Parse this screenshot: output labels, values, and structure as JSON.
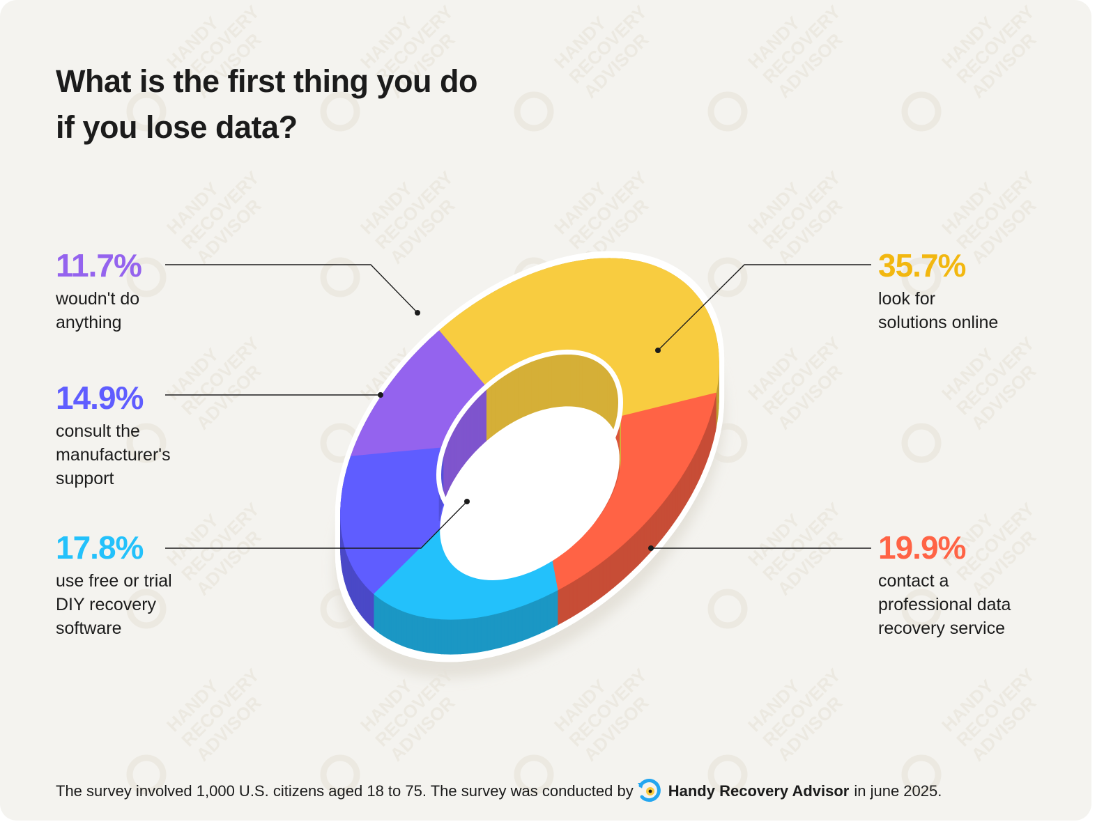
{
  "title": "What is the first thing you do if you lose data?",
  "colors": {
    "background": "#f4f3ef",
    "purple": "#9463ee",
    "indigo": "#5f5dff",
    "cyan": "#23c1fb",
    "coral": "#ff6345",
    "yellow": "#f8cc40"
  },
  "chart_data": {
    "type": "pie",
    "style": "3D donut",
    "title": "What is the first thing you do if you lose data?",
    "slices": [
      {
        "label": "look for solutions online",
        "value": 35.7,
        "value_label": "35.7%",
        "color": "#f8cc40"
      },
      {
        "label": "contact a professional data recovery service",
        "value": 19.9,
        "value_label": "19.9%",
        "color": "#ff6345"
      },
      {
        "label": "use free or trial DIY recovery software",
        "value": 17.8,
        "value_label": "17.8%",
        "color": "#23c1fb"
      },
      {
        "label": "consult the manufacturer's support",
        "value": 14.9,
        "value_label": "14.9%",
        "color": "#5f5dff"
      },
      {
        "label": "woudn't do anything",
        "value": 11.7,
        "value_label": "11.7%",
        "color": "#9463ee"
      }
    ]
  },
  "labels": {
    "purple": {
      "pct": "11.7%",
      "line1": "woudn't do",
      "line2": "anything"
    },
    "indigo": {
      "pct": "14.9%",
      "line1": "consult the",
      "line2": "manufacturer's",
      "line3": "support"
    },
    "cyan": {
      "pct": "17.8%",
      "line1": "use free or trial",
      "line2": "DIY recovery",
      "line3": "software"
    },
    "yellow": {
      "pct": "35.7%",
      "line1": "look for",
      "line2": "solutions online"
    },
    "coral": {
      "pct": "19.9%",
      "line1": "contact a",
      "line2": "professional data",
      "line3": "recovery service"
    }
  },
  "footer": {
    "text_before": "The survey involved 1,000 U.S. citizens aged 18 to 75. The survey was conducted by",
    "brand": "Handy Recovery Advisor",
    "text_after": "in june 2025.",
    "logo_icon": "handy-recovery-advisor-logo-icon"
  },
  "watermark_text": [
    "HANDY",
    "RECOVERY",
    "ADVISOR"
  ]
}
